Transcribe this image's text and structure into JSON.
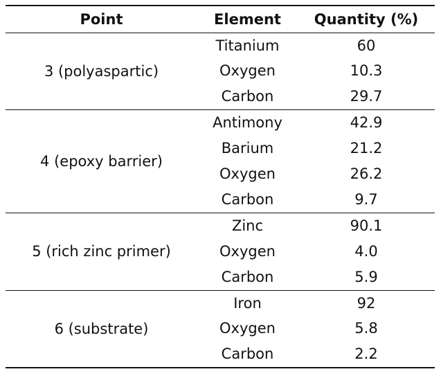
{
  "table": {
    "header": [
      "Point",
      "Element",
      "Quantity (%)"
    ],
    "groups": [
      {
        "point": "3 (polyaspartic)",
        "rows": [
          [
            "Titanium",
            "60"
          ],
          [
            "Oxygen",
            "10.3"
          ],
          [
            "Carbon",
            "29.7"
          ]
        ]
      },
      {
        "point": "4 (epoxy barrier)",
        "rows": [
          [
            "Antimony",
            "42.9"
          ],
          [
            "Barium",
            "21.2"
          ],
          [
            "Oxygen",
            "26.2"
          ],
          [
            "Carbon",
            "9.7"
          ]
        ]
      },
      {
        "point": "5 (rich zinc primer)",
        "rows": [
          [
            "Zinc",
            "90.1"
          ],
          [
            "Oxygen",
            "4.0"
          ],
          [
            "Carbon",
            "5.9"
          ]
        ]
      },
      {
        "point": "6 (substrate)",
        "rows": [
          [
            "Iron",
            "92"
          ],
          [
            "Oxygen",
            "5.8"
          ],
          [
            "Carbon",
            "2.2"
          ]
        ]
      }
    ]
  }
}
